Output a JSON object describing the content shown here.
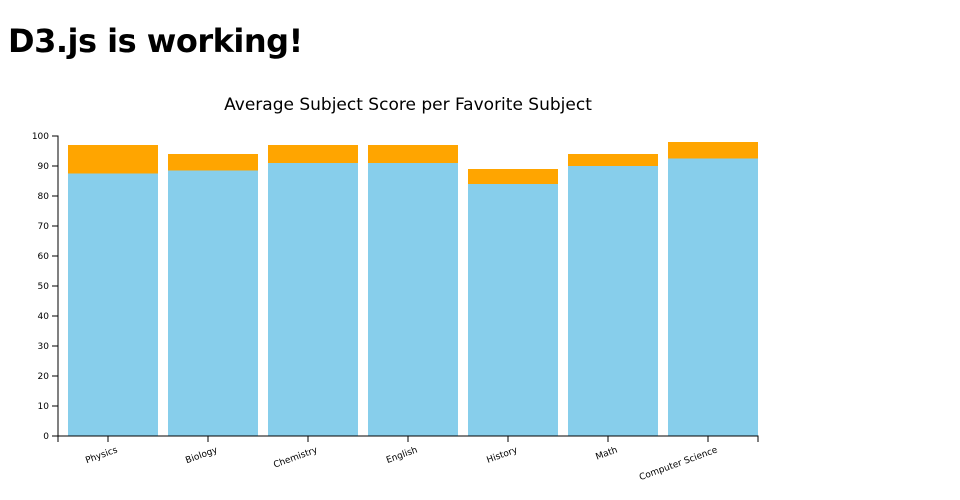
{
  "page": {
    "heading": "D3.js is working!"
  },
  "chart_data": {
    "type": "bar",
    "title": "Average Subject Score per Favorite Subject",
    "xlabel": "",
    "ylabel": "",
    "ylim": [
      0,
      100
    ],
    "yticks": [
      0,
      10,
      20,
      30,
      40,
      50,
      60,
      70,
      80,
      90,
      100
    ],
    "categories": [
      "Physics",
      "Biology",
      "Chemistry",
      "English",
      "History",
      "Math",
      "Computer Science"
    ],
    "series": [
      {
        "name": "",
        "color": "#87CEEB",
        "values": [
          87.5,
          88.5,
          91,
          91,
          84,
          90,
          92.5
        ]
      },
      {
        "name": "",
        "color": "#FFA500",
        "values": [
          97,
          94,
          97,
          97,
          89,
          94,
          98
        ]
      }
    ],
    "grid": false,
    "legend": "none"
  }
}
